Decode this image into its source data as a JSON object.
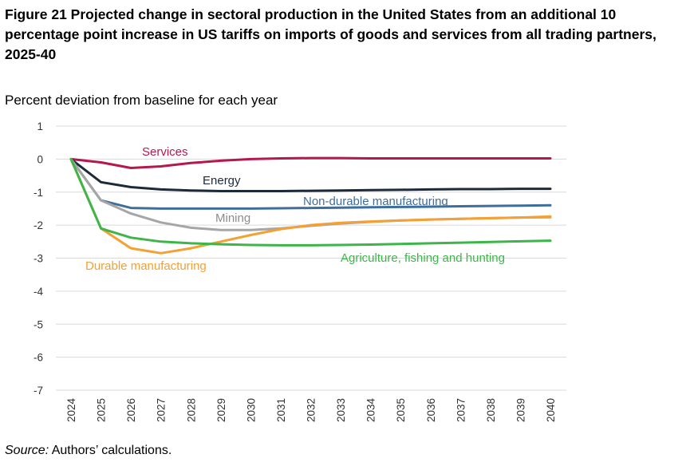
{
  "title": "Figure 21 Projected change in sectoral production in the United States from an additional 10 percentage point increase in US tariffs on imports of goods and services from all trading partners, 2025-40",
  "source_label": "Source:",
  "source_text": "Authors’ calculations.",
  "chart_data": {
    "type": "line",
    "title": "Figure 21 Projected change in sectoral production in the United States from an additional 10 percentage point increase in US tariffs on imports of goods and services from all trading partners, 2025-40",
    "ylabel": "Percent deviation from baseline for each year",
    "xlabel": "",
    "ylim": [
      -7,
      1
    ],
    "yticks": [
      1,
      0,
      -1,
      -2,
      -3,
      -4,
      -5,
      -6,
      -7
    ],
    "grid": true,
    "legend": "inline labels",
    "x": [
      "2024",
      "2025",
      "2026",
      "2027",
      "2028",
      "2029",
      "2030",
      "2031",
      "2032",
      "2033",
      "2034",
      "2035",
      "2036",
      "2037",
      "2038",
      "2039",
      "2040"
    ],
    "series": [
      {
        "name": "Services",
        "color": "#B5174F",
        "values": [
          0,
          -0.1,
          -0.27,
          -0.22,
          -0.12,
          -0.05,
          0,
          0.02,
          0.03,
          0.03,
          0.02,
          0.02,
          0.02,
          0.02,
          0.02,
          0.02,
          0.02
        ]
      },
      {
        "name": "Energy",
        "color": "#1C2A39",
        "values": [
          0,
          -0.7,
          -0.85,
          -0.92,
          -0.95,
          -0.97,
          -0.97,
          -0.97,
          -0.96,
          -0.95,
          -0.94,
          -0.93,
          -0.92,
          -0.91,
          -0.91,
          -0.9,
          -0.9
        ]
      },
      {
        "name": "Non-durable manufacturing",
        "color": "#3F6E9A",
        "values": [
          0,
          -1.25,
          -1.48,
          -1.5,
          -1.5,
          -1.5,
          -1.5,
          -1.49,
          -1.48,
          -1.47,
          -1.46,
          -1.45,
          -1.44,
          -1.43,
          -1.42,
          -1.41,
          -1.4
        ]
      },
      {
        "name": "Mining",
        "color": "#A6A6A6",
        "values": [
          0,
          -1.25,
          -1.65,
          -1.92,
          -2.08,
          -2.15,
          -2.15,
          -2.1,
          -2.02,
          -1.95,
          -1.9,
          -1.86,
          -1.83,
          -1.81,
          -1.79,
          -1.77,
          -1.76
        ]
      },
      {
        "name": "Durable manufacturing",
        "color": "#F5A033",
        "values": [
          0,
          -2.1,
          -2.7,
          -2.85,
          -2.7,
          -2.5,
          -2.3,
          -2.12,
          -2.0,
          -1.93,
          -1.89,
          -1.86,
          -1.83,
          -1.81,
          -1.79,
          -1.77,
          -1.74
        ]
      },
      {
        "name": "Agriculture, fishing and hunting",
        "color": "#3DB54A",
        "values": [
          0,
          -2.1,
          -2.38,
          -2.5,
          -2.55,
          -2.58,
          -2.6,
          -2.61,
          -2.61,
          -2.6,
          -2.59,
          -2.57,
          -2.55,
          -2.53,
          -2.51,
          -2.49,
          -2.47
        ]
      }
    ]
  }
}
